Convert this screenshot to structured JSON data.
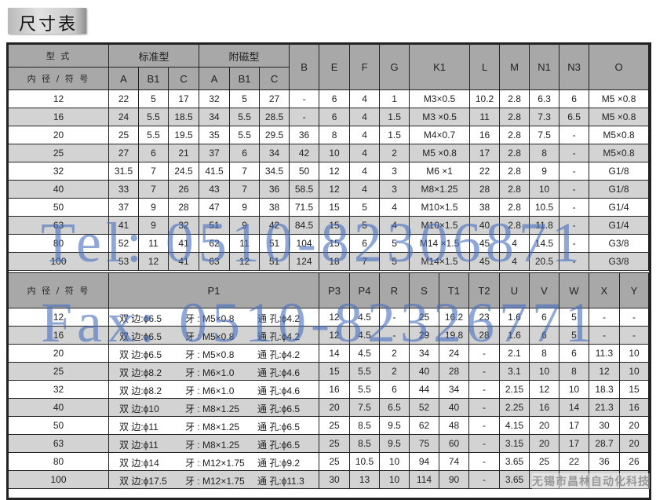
{
  "title": "尺寸表",
  "table1": {
    "header_row1": {
      "type_label": "型 式",
      "standard": "标准型",
      "magnetic": "附磁型",
      "cols": [
        "B",
        "E",
        "F",
        "G",
        "K1",
        "L",
        "M",
        "N1",
        "N3",
        "O"
      ]
    },
    "header_row2": {
      "bore_label": "内 径 / 符 号",
      "sub_cols": [
        "A",
        "B1",
        "C",
        "A",
        "B1",
        "C"
      ]
    },
    "rows": [
      [
        "12",
        "22",
        "5",
        "17",
        "32",
        "5",
        "27",
        "-",
        "6",
        "4",
        "1",
        "M3×0.5",
        "10.2",
        "2.8",
        "6.3",
        "6",
        "M5 ×0.8"
      ],
      [
        "16",
        "24",
        "5.5",
        "18.5",
        "34",
        "5.5",
        "28.5",
        "-",
        "6",
        "4",
        "1.5",
        "M3 ×0.5",
        "11",
        "2.8",
        "7.3",
        "6.5",
        "M5 ×0.8"
      ],
      [
        "20",
        "25",
        "5.5",
        "19.5",
        "35",
        "5.5",
        "29.5",
        "36",
        "8",
        "4",
        "1.5",
        "M4×0.7",
        "16",
        "2.8",
        "7.5",
        "-",
        "M5×0.8"
      ],
      [
        "25",
        "27",
        "6",
        "21",
        "37",
        "6",
        "34",
        "42",
        "10",
        "4",
        "2",
        "M5 ×0.8",
        "17",
        "2.8",
        "8",
        "-",
        "M5×0.8"
      ],
      [
        "32",
        "31.5",
        "7",
        "24.5",
        "41.5",
        "7",
        "34.5",
        "50",
        "12",
        "4",
        "3",
        "M6 ×1",
        "22",
        "2.8",
        "9",
        "-",
        "G1/8"
      ],
      [
        "40",
        "33",
        "7",
        "26",
        "43",
        "7",
        "36",
        "58.5",
        "12",
        "4",
        "3",
        "M8×1.25",
        "28",
        "2.8",
        "10",
        "-",
        "G1/8"
      ],
      [
        "50",
        "37",
        "9",
        "28",
        "47",
        "9",
        "38",
        "71.5",
        "15",
        "5",
        "4",
        "M10×1.5",
        "38",
        "2.8",
        "10.5",
        "-",
        "G1/4"
      ],
      [
        "63",
        "41",
        "9",
        "32",
        "51",
        "9",
        "42",
        "84.5",
        "15",
        "5",
        "4",
        "M10×1.5",
        "40",
        "2.8",
        "11.8",
        "-",
        "G1/4"
      ],
      [
        "80",
        "52",
        "11",
        "41",
        "62",
        "11",
        "51",
        "104",
        "15",
        "6",
        "5",
        "M14 ×1.5",
        "45",
        "4",
        "14.5",
        "-",
        "G3/8"
      ],
      [
        "100",
        "53",
        "12",
        "41",
        "63",
        "12",
        "51",
        "124",
        "18",
        "7",
        "5",
        "M14×1.5",
        "45",
        "4",
        "20.5",
        "-",
        "G3/8"
      ]
    ]
  },
  "table2": {
    "header": {
      "bore_label": "内 径 / 符 号",
      "cols": [
        "P1",
        "P3",
        "P4",
        "R",
        "S",
        "T1",
        "T2",
        "U",
        "V",
        "W",
        "X",
        "Y"
      ]
    },
    "rows": [
      {
        "bore": "12",
        "p1": [
          "双 边:ϕ6.5",
          "牙 : M5×0.8",
          "通 孔:ϕ4.2"
        ],
        "vals": [
          "12",
          "4.5",
          "-",
          "25",
          "16.2",
          "23",
          "1.6",
          "6",
          "5",
          "-",
          "-"
        ]
      },
      {
        "bore": "16",
        "p1": [
          "双 边:ϕ6.5",
          "牙 : M5×0.8",
          "通 孔:ϕ4.2"
        ],
        "vals": [
          "12",
          "4.5",
          "-",
          "29",
          "19.8",
          "28",
          "1.6",
          "6",
          "5",
          "-",
          "-"
        ]
      },
      {
        "bore": "20",
        "p1": [
          "双 边:ϕ6.5",
          "牙 : M5×0.8",
          "通 孔:ϕ4.2"
        ],
        "vals": [
          "14",
          "4.5",
          "2",
          "34",
          "24",
          "-",
          "2.1",
          "8",
          "6",
          "11.3",
          "10"
        ]
      },
      {
        "bore": "25",
        "p1": [
          "双 边:ϕ8.2",
          "牙 : M6×1.0",
          "通 孔:ϕ4.6"
        ],
        "vals": [
          "15",
          "5.5",
          "2",
          "40",
          "28",
          "-",
          "3.1",
          "10",
          "8",
          "12",
          "10"
        ]
      },
      {
        "bore": "32",
        "p1": [
          "双 边:ϕ8.2",
          "牙 : M6×1.0",
          "通 孔:ϕ4.6"
        ],
        "vals": [
          "16",
          "5.5",
          "6",
          "44",
          "34",
          "-",
          "2.15",
          "12",
          "10",
          "18.3",
          "15"
        ]
      },
      {
        "bore": "40",
        "p1": [
          "双 边:ϕ10",
          "牙 : M8×1.25",
          "通 孔:ϕ6.5"
        ],
        "vals": [
          "20",
          "7.5",
          "6.5",
          "52",
          "40",
          "-",
          "2.25",
          "16",
          "14",
          "21.3",
          "16"
        ]
      },
      {
        "bore": "50",
        "p1": [
          "双 边:ϕ11",
          "牙 : M8×1.25",
          "通 孔:ϕ6.5"
        ],
        "vals": [
          "25",
          "8.5",
          "9.5",
          "62",
          "48",
          "-",
          "4.15",
          "20",
          "17",
          "30",
          "20"
        ]
      },
      {
        "bore": "63",
        "p1": [
          "双 边:ϕ11",
          "牙 : M8×1.25",
          "通 孔:ϕ6.5"
        ],
        "vals": [
          "25",
          "8.5",
          "9.5",
          "75",
          "60",
          "-",
          "3.15",
          "20",
          "17",
          "28.7",
          "20"
        ]
      },
      {
        "bore": "80",
        "p1": [
          "双 边:ϕ14",
          "牙 : M12×1.75",
          "通 孔:ϕ9.2"
        ],
        "vals": [
          "25",
          "10.5",
          "10",
          "94",
          "74",
          "-",
          "3.65",
          "25",
          "22",
          "36",
          "26"
        ]
      },
      {
        "bore": "100",
        "p1": [
          "双 边:ϕ17.5",
          "牙 : M12×1.75",
          "通 孔:ϕ11.3"
        ],
        "vals": [
          "30",
          "13",
          "10",
          "114",
          "90",
          "-",
          "3.65",
          "",
          "",
          "",
          ""
        ]
      }
    ]
  },
  "watermarks": {
    "tel": "Tel: 0510-82306871",
    "fax": "Fax: 0510-82326771",
    "company": "无锡市昌林自动化科技"
  },
  "colors": {
    "header_bg": "#a8a8a8",
    "stripe_bg": "#d3d3d3",
    "watermark": "#466ebe"
  }
}
